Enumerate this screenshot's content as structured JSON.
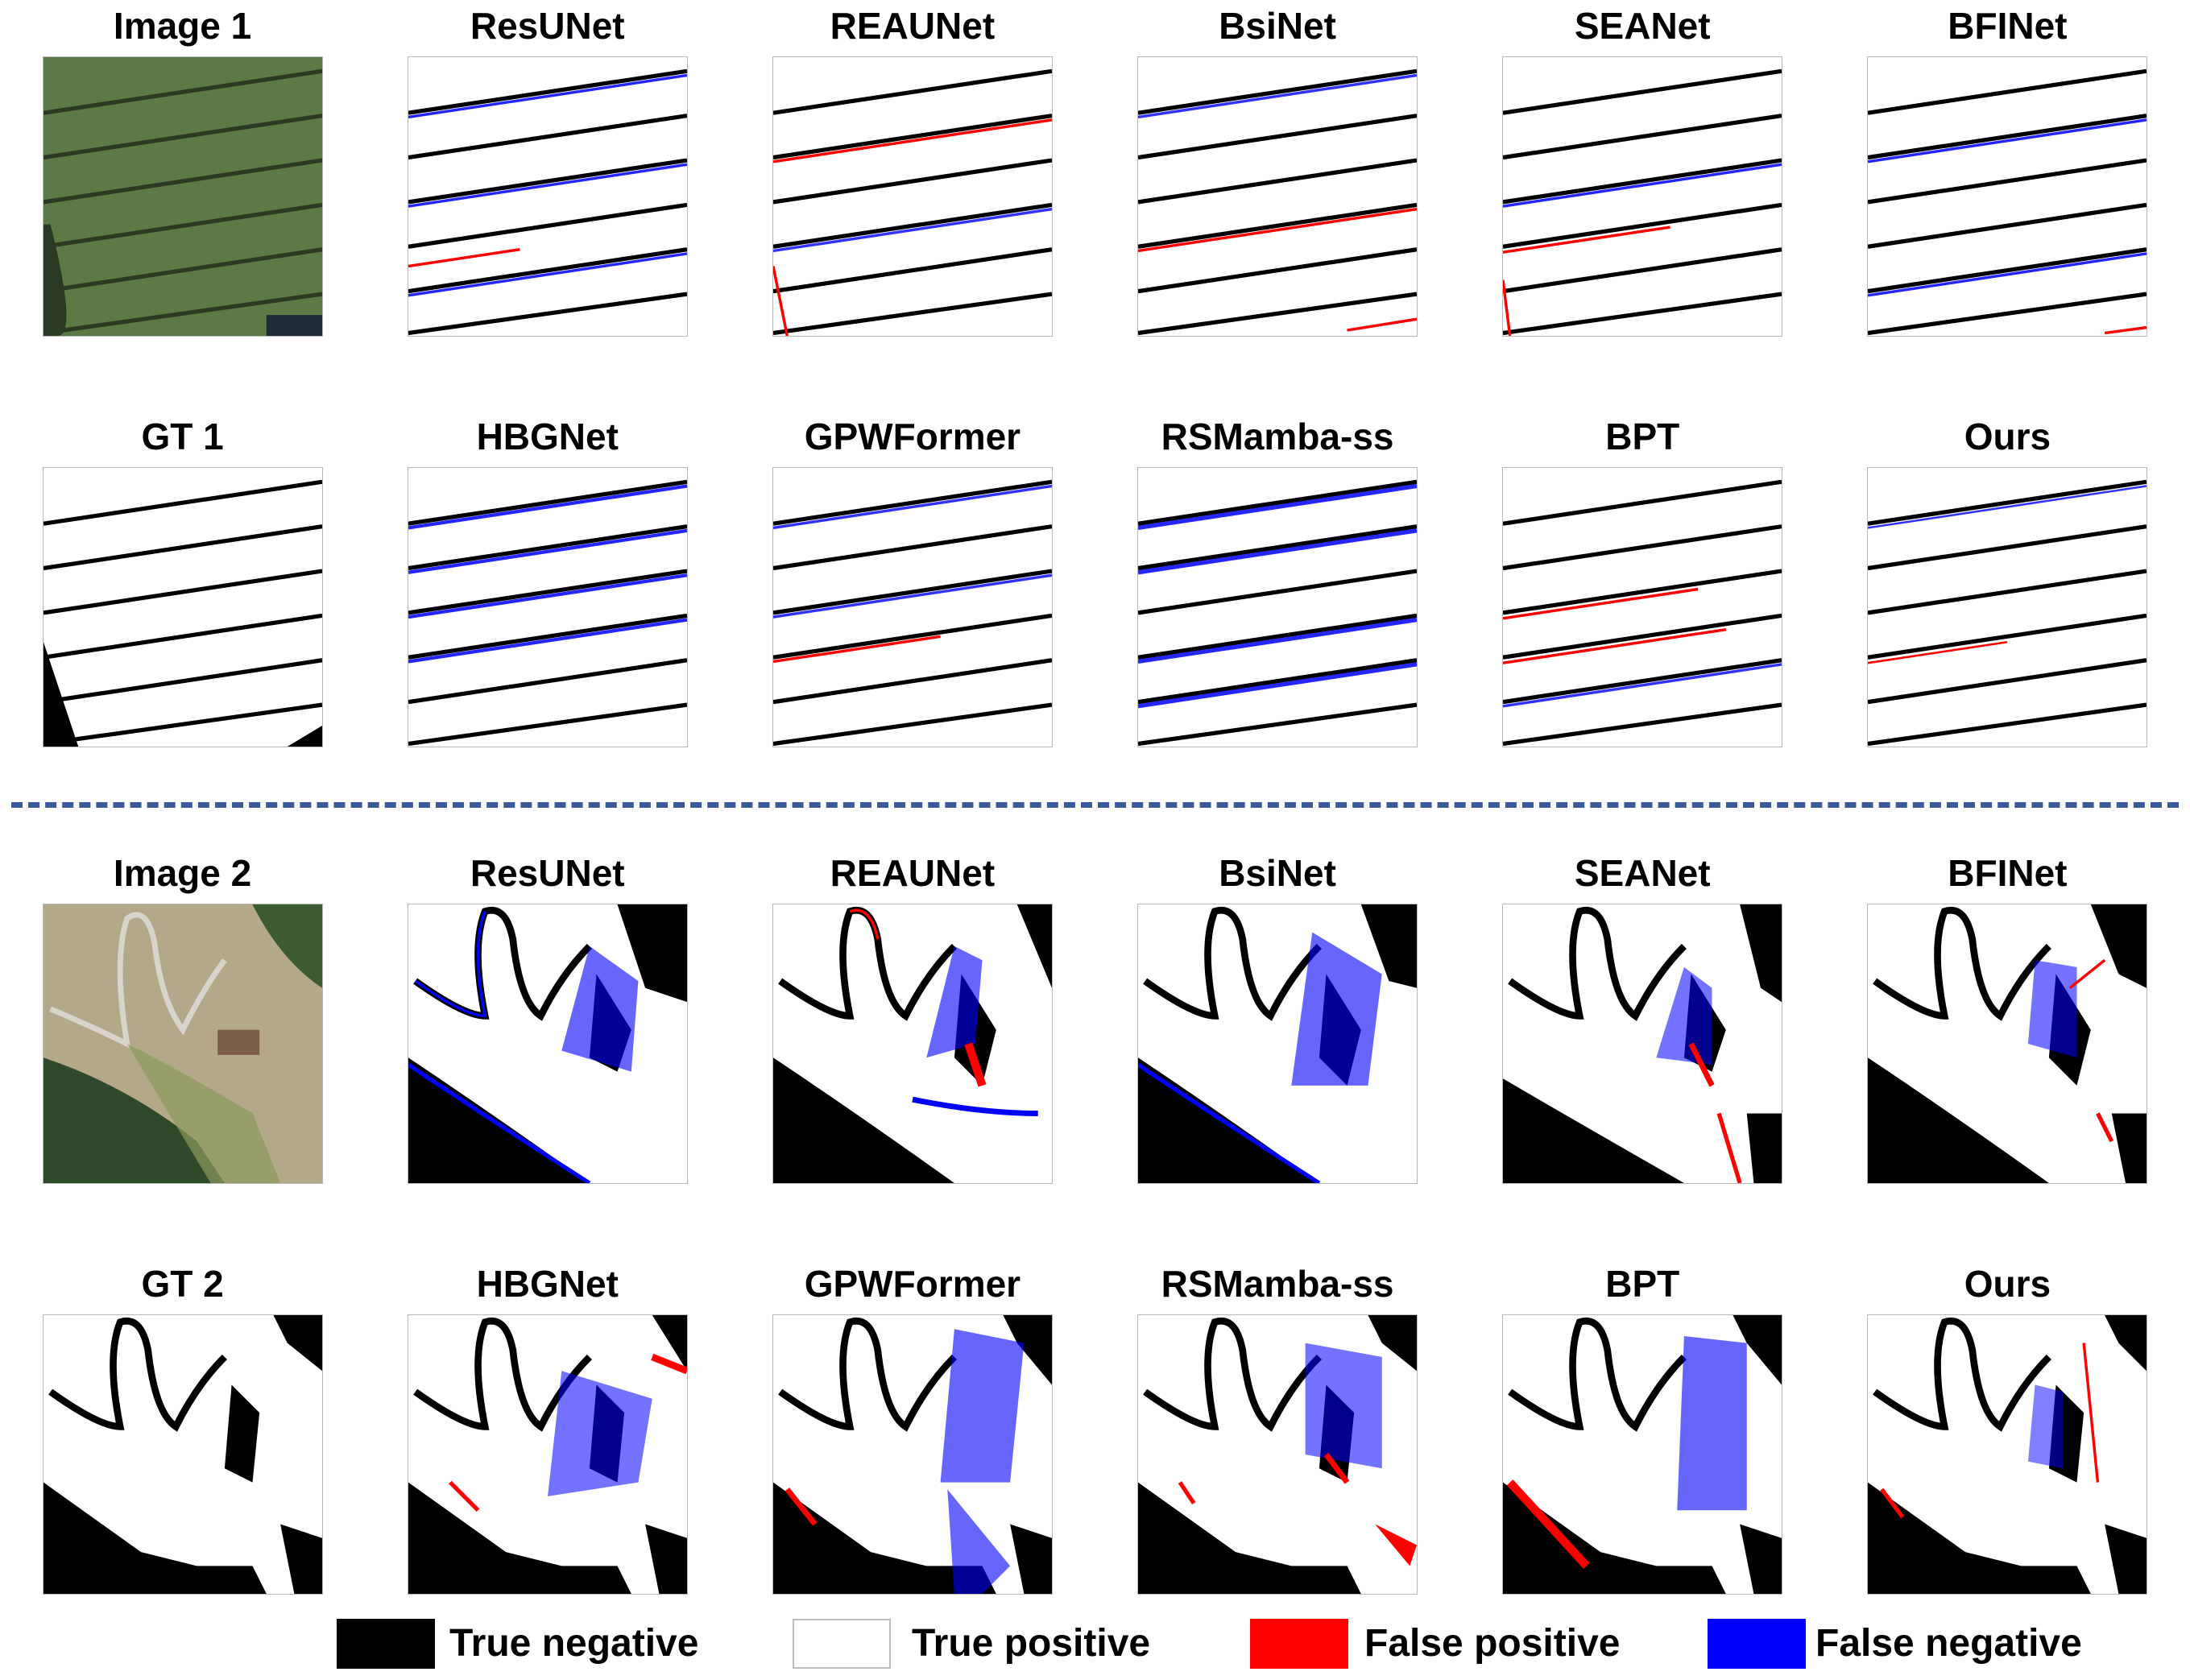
{
  "figure": {
    "rows": [
      [
        "Image 1",
        "ResUNet",
        "REAUNet",
        "BsiNet",
        "SEANet",
        "BFINet"
      ],
      [
        "GT 1",
        "HBGNet",
        "GPWFormer",
        "RSMamba-ss",
        "BPT",
        "Ours"
      ],
      [
        "Image 2",
        "ResUNet",
        "REAUNet",
        "BsiNet",
        "SEANet",
        "BFINet"
      ],
      [
        "GT 2",
        "HBGNet",
        "GPWFormer",
        "RSMamba-ss",
        "BPT",
        "Ours"
      ]
    ]
  },
  "legend": {
    "items": [
      {
        "label": "True negative",
        "color": "#000000"
      },
      {
        "label": "True positive",
        "color": "#ffffff"
      },
      {
        "label": "False positive",
        "color": "#ff0000"
      },
      {
        "label": "False negative",
        "color": "#0000ff"
      }
    ]
  },
  "colors": {
    "divider": "#3b5a9a",
    "field": "#5c7a45",
    "aerial": "#b4a88a",
    "forest": "#2f4a2a"
  }
}
